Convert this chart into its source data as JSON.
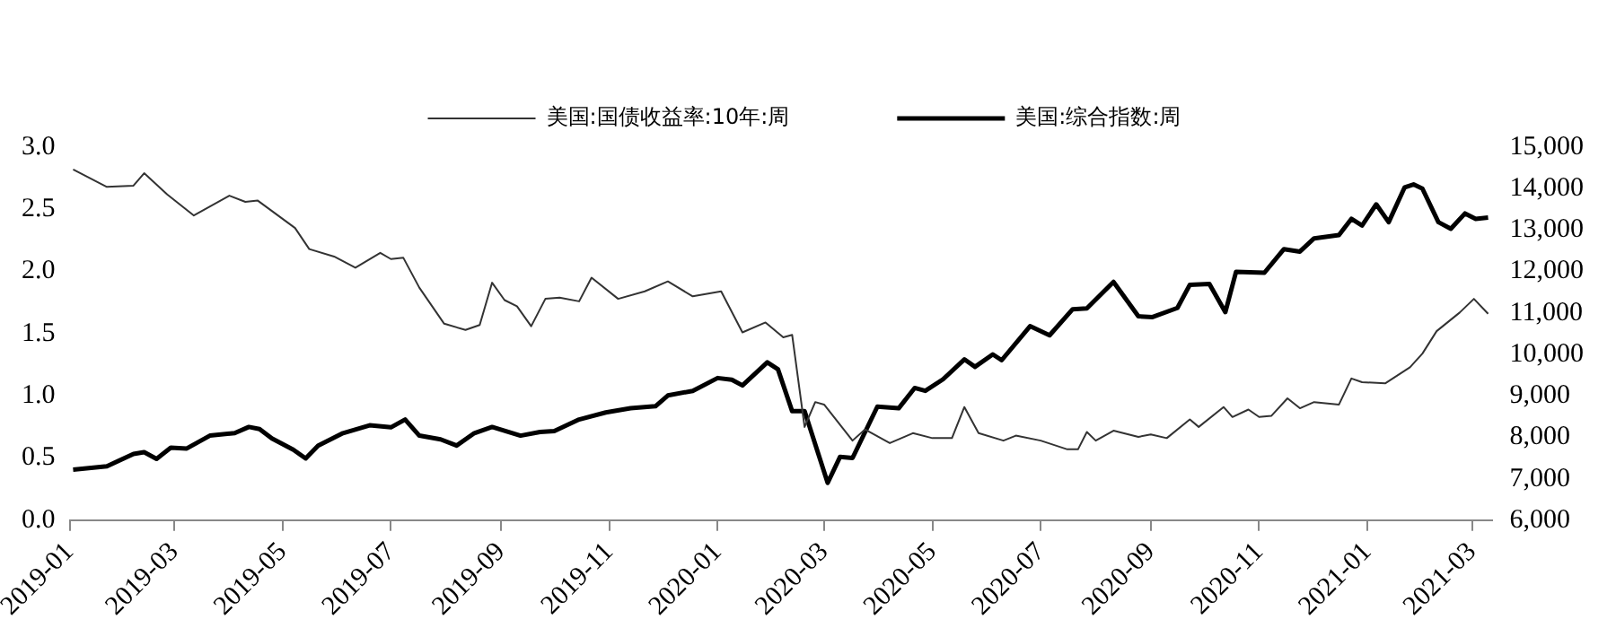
{
  "chart_data": {
    "type": "line",
    "legend": "top",
    "xlim": [
      "2019-01-01",
      "2021-03-12"
    ],
    "xticks": [
      "2019-01",
      "2019-03",
      "2019-05",
      "2019-07",
      "2019-09",
      "2019-11",
      "2020-01",
      "2020-03",
      "2020-05",
      "2020-07",
      "2020-09",
      "2020-11",
      "2021-01",
      "2021-03"
    ],
    "ylim": [
      0,
      3
    ],
    "yticks": [
      {
        "value": 0,
        "label": "0.0"
      },
      {
        "value": 0.5,
        "label": "0.5"
      },
      {
        "value": 1,
        "label": "1.0"
      },
      {
        "value": 1.5,
        "label": "1.5"
      },
      {
        "value": 2,
        "label": "2.0"
      },
      {
        "value": 2.5,
        "label": "2.5"
      },
      {
        "value": 3,
        "label": "3.0"
      }
    ],
    "y2lim": [
      6000,
      15000
    ],
    "y2ticks": [
      {
        "value": 6000,
        "label": "6,000"
      },
      {
        "value": 7000,
        "label": "7,000"
      },
      {
        "value": 8000,
        "label": "8,000"
      },
      {
        "value": 9000,
        "label": "9,000"
      },
      {
        "value": 10000,
        "label": "10,000"
      },
      {
        "value": 11000,
        "label": "11,000"
      },
      {
        "value": 12000,
        "label": "12,000"
      },
      {
        "value": 13000,
        "label": "13,000"
      },
      {
        "value": 14000,
        "label": "14,000"
      },
      {
        "value": 15000,
        "label": "15,000"
      }
    ],
    "series": [
      {
        "name": "美国:国债收益率:10年:周",
        "color": "#333333",
        "x": [
          "2019-01-03",
          "2019-01-22",
          "2019-02-06",
          "2019-02-12",
          "2019-02-25",
          "2019-03-12",
          "2019-04-01",
          "2019-04-10",
          "2019-04-17",
          "2019-05-08",
          "2019-05-16",
          "2019-05-30",
          "2019-06-11",
          "2019-06-25",
          "2019-07-01",
          "2019-07-08",
          "2019-07-17",
          "2019-07-31",
          "2019-08-12",
          "2019-08-20",
          "2019-08-27",
          "2019-09-03",
          "2019-09-10",
          "2019-09-18",
          "2019-09-26",
          "2019-10-04",
          "2019-10-15",
          "2019-10-22",
          "2019-11-06",
          "2019-11-21",
          "2019-12-04",
          "2019-12-18",
          "2020-01-03",
          "2020-01-15",
          "2020-01-28",
          "2020-02-07",
          "2020-02-12",
          "2020-02-19",
          "2020-02-25",
          "2020-03-01",
          "2020-03-17",
          "2020-03-24",
          "2020-04-07",
          "2020-04-20",
          "2020-05-01",
          "2020-05-12",
          "2020-05-19",
          "2020-05-27",
          "2020-06-10",
          "2020-06-17",
          "2020-07-01",
          "2020-07-16",
          "2020-07-22",
          "2020-07-27",
          "2020-08-01",
          "2020-08-11",
          "2020-08-25",
          "2020-09-01",
          "2020-09-10",
          "2020-09-23",
          "2020-09-28",
          "2020-10-12",
          "2020-10-17",
          "2020-10-26",
          "2020-11-01",
          "2020-11-08",
          "2020-11-17",
          "2020-11-24",
          "2020-12-02",
          "2020-12-16",
          "2020-12-23",
          "2020-12-29",
          "2021-01-11",
          "2021-01-25",
          "2021-02-01",
          "2021-02-09",
          "2021-02-22",
          "2021-03-02",
          "2021-03-10"
        ],
        "values": [
          2.82,
          2.68,
          2.69,
          2.79,
          2.62,
          2.45,
          2.61,
          2.56,
          2.57,
          2.35,
          2.18,
          2.12,
          2.03,
          2.15,
          2.1,
          2.11,
          1.87,
          1.58,
          1.53,
          1.57,
          1.91,
          1.77,
          1.72,
          1.56,
          1.78,
          1.79,
          1.76,
          1.95,
          1.78,
          1.84,
          1.92,
          1.8,
          1.84,
          1.51,
          1.59,
          1.47,
          1.49,
          0.75,
          0.95,
          0.93,
          0.64,
          0.73,
          0.62,
          0.7,
          0.66,
          0.66,
          0.91,
          0.7,
          0.64,
          0.68,
          0.64,
          0.57,
          0.57,
          0.71,
          0.64,
          0.72,
          0.67,
          0.69,
          0.66,
          0.81,
          0.75,
          0.91,
          0.83,
          0.89,
          0.83,
          0.84,
          0.98,
          0.9,
          0.95,
          0.93,
          1.14,
          1.11,
          1.1,
          1.23,
          1.34,
          1.52,
          1.67,
          1.78,
          1.66
        ]
      },
      {
        "name": "美国:综合指数:周",
        "color": "#000000",
        "axis": "y2",
        "x": [
          "2019-01-03",
          "2019-01-22",
          "2019-02-06",
          "2019-02-12",
          "2019-02-19",
          "2019-02-27",
          "2019-03-08",
          "2019-03-21",
          "2019-04-04",
          "2019-04-12",
          "2019-04-18",
          "2019-04-25",
          "2019-05-07",
          "2019-05-14",
          "2019-05-21",
          "2019-06-04",
          "2019-06-19",
          "2019-07-01",
          "2019-07-09",
          "2019-07-17",
          "2019-07-29",
          "2019-08-07",
          "2019-08-17",
          "2019-08-27",
          "2019-09-12",
          "2019-09-23",
          "2019-10-01",
          "2019-10-15",
          "2019-10-30",
          "2019-11-13",
          "2019-11-27",
          "2019-12-04",
          "2019-12-18",
          "2020-01-01",
          "2020-01-09",
          "2020-01-15",
          "2020-01-29",
          "2020-02-04",
          "2020-02-12",
          "2020-02-19",
          "2020-03-03",
          "2020-03-10",
          "2020-03-17",
          "2020-03-31",
          "2020-04-12",
          "2020-04-21",
          "2020-04-27",
          "2020-05-07",
          "2020-05-19",
          "2020-05-25",
          "2020-06-04",
          "2020-06-09",
          "2020-06-25",
          "2020-07-06",
          "2020-07-19",
          "2020-07-27",
          "2020-08-11",
          "2020-08-25",
          "2020-09-02",
          "2020-09-16",
          "2020-09-23",
          "2020-10-04",
          "2020-10-13",
          "2020-10-19",
          "2020-11-04",
          "2020-11-15",
          "2020-11-24",
          "2020-12-02",
          "2020-12-16",
          "2020-12-23",
          "2020-12-29",
          "2021-01-06",
          "2021-01-13",
          "2021-01-22",
          "2021-01-27",
          "2021-02-01",
          "2021-02-10",
          "2021-02-17",
          "2021-02-25",
          "2021-03-03",
          "2021-03-10"
        ],
        "values": [
          7220,
          7300,
          7600,
          7640,
          7480,
          7750,
          7730,
          8040,
          8100,
          8250,
          8200,
          7970,
          7700,
          7490,
          7800,
          8100,
          8290,
          8240,
          8430,
          8040,
          7950,
          7800,
          8100,
          8250,
          8040,
          8130,
          8150,
          8430,
          8600,
          8700,
          8750,
          9010,
          9120,
          9430,
          9390,
          9250,
          9810,
          9640,
          8630,
          8630,
          6900,
          7530,
          7500,
          8740,
          8700,
          9190,
          9120,
          9400,
          9880,
          9700,
          10000,
          9860,
          10680,
          10460,
          11090,
          11110,
          11750,
          10920,
          10900,
          11120,
          11680,
          11700,
          11020,
          11990,
          11970,
          12540,
          12480,
          12800,
          12880,
          13270,
          13110,
          13620,
          13190,
          14030,
          14100,
          14000,
          13190,
          13030,
          13400,
          13270,
          13300
        ]
      }
    ]
  }
}
